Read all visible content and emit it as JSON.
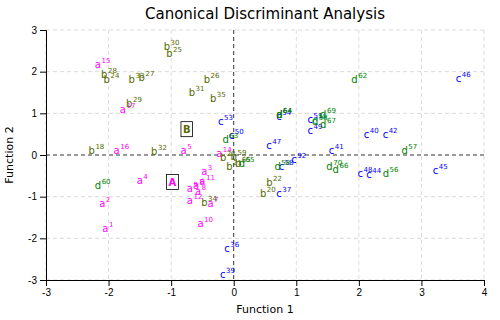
{
  "chart_data": {
    "type": "scatter",
    "title": "Canonical Discriminant Analysis",
    "xlabel": "Function 1",
    "ylabel": "Function 2",
    "xlim": [
      -3,
      4
    ],
    "ylim": [
      -3,
      3
    ],
    "xticks": [
      -3,
      -2,
      -1,
      0,
      1,
      2,
      3,
      4
    ],
    "yticks": [
      -3,
      -2,
      -1,
      0,
      1,
      2,
      3
    ],
    "grid": true,
    "series": [
      {
        "type": "text",
        "x": [
          -2.1,
          -2.15,
          -0.52,
          -1.55,
          -0.85,
          -0.65,
          -0.42,
          -0.62,
          -0.75,
          -0.58,
          -0.55,
          -0.75,
          -0.28,
          -2.22,
          -1.92,
          -1.82,
          -2.32,
          0.42,
          -0.12,
          0.52,
          -0.22,
          -2.08,
          -1.08,
          -0.48,
          -1.52,
          -2.12,
          -1.72,
          -1.12,
          -0.72,
          -1.32,
          -1.68,
          -0.52,
          -0.38,
          -0.05,
          0.02,
          -0.15,
          0.68,
          -0.22,
          2.08,
          1.52,
          2.38,
          2.12,
          3.18,
          3.55,
          0.52,
          1.98,
          1.18,
          -0.08,
          1.18,
          -0.25,
          0.68,
          1.25,
          0.72,
          0.92,
          1.25,
          0.68,
          2.38,
          2.68,
          0.65,
          -2.22,
          1.88,
          -0.18,
          0.68,
          0.08,
          1.58,
          1.38,
          1.38,
          1.48
        ],
        "values": [
          -1.85,
          -1.25,
          -0.48,
          -0.7,
          0.03,
          -0.82,
          -1.25,
          -0.95,
          -0.88,
          -1.72,
          -0.72,
          -1.18,
          -0.05,
          2.1,
          0.02,
          1.0,
          0.02,
          -1.0,
          -0.35,
          -0.75,
          -0.15,
          1.72,
          2.35,
          1.72,
          1.78,
          1.85,
          1.15,
          2.52,
          1.42,
          0.0,
          1.72,
          -1.22,
          1.28,
          -0.12,
          -0.28,
          -2.32,
          -1.0,
          -2.95,
          0.4,
          0.02,
          0.4,
          -0.55,
          -0.45,
          1.75,
          0.15,
          -0.52,
          0.5,
          0.38,
          0.78,
          0.72,
          0.85,
          0.75,
          -0.35,
          -0.18,
          0.72,
          0.88,
          -0.52,
          0.02,
          -0.35,
          -0.82,
          1.72,
          0.28,
          0.88,
          -0.28,
          -0.42,
          0.65,
          0.9,
          -0.35
        ],
        "labels": [
          "a",
          "a",
          "a",
          "a",
          "a",
          "a",
          "a",
          "a",
          "a",
          "a",
          "a",
          "a",
          "a",
          "a",
          "a",
          "a",
          "b",
          "b",
          "b",
          "b",
          "b",
          "b",
          "b",
          "b",
          "b",
          "b",
          "b",
          "b",
          "b",
          "b",
          "b",
          "b",
          "b",
          "b",
          "b",
          "c",
          "c",
          "c",
          "c",
          "c",
          "c",
          "c",
          "c",
          "c",
          "c",
          "c",
          "c",
          "c",
          "c",
          "c",
          "c",
          "c",
          "c",
          "c",
          "d",
          "d",
          "d",
          "d",
          "d",
          "d",
          "d",
          "d",
          "d",
          "d",
          "d",
          "d",
          "d",
          "d"
        ],
        "numbers": [
          "1",
          "2",
          "3",
          "4",
          "5",
          "6",
          "7",
          "8",
          "9",
          "10",
          "11",
          "12",
          "14",
          "15",
          "16",
          "17",
          "18",
          "20",
          "21",
          "22",
          "23",
          "24",
          "25",
          "26",
          "27",
          "28",
          "29",
          "30",
          "31",
          "32",
          "33",
          "34",
          "35",
          "59",
          "65",
          "36",
          "37",
          "39",
          "40",
          "41",
          "42",
          "44",
          "45",
          "46",
          "47",
          "48",
          "49",
          "50",
          "51",
          "53",
          "54",
          "55",
          "58",
          "92",
          "38",
          "54",
          "56",
          "57",
          "58",
          "60",
          "62",
          "63",
          "64",
          "65",
          "66",
          "67",
          "69",
          "70"
        ],
        "colors": [
          "#ff00ff",
          "#ff00ff",
          "#ff00ff",
          "#ff00ff",
          "#ff00ff",
          "#ff00ff",
          "#ff00ff",
          "#ff00ff",
          "#ff00ff",
          "#ff00ff",
          "#ff00ff",
          "#ff00ff",
          "#ff00ff",
          "#ff00ff",
          "#ff00ff",
          "#ff00ff",
          "#556b00",
          "#556b00",
          "#556b00",
          "#556b00",
          "#556b00",
          "#556b00",
          "#556b00",
          "#556b00",
          "#556b00",
          "#556b00",
          "#556b00",
          "#556b00",
          "#556b00",
          "#556b00",
          "#556b00",
          "#556b00",
          "#556b00",
          "#556b00",
          "#556b00",
          "#0000ff",
          "#0000ff",
          "#0000ff",
          "#0000ff",
          "#0000ff",
          "#0000ff",
          "#0000ff",
          "#0000ff",
          "#0000ff",
          "#0000ff",
          "#0000ff",
          "#0000ff",
          "#0000ff",
          "#0000ff",
          "#0000ff",
          "#0000ff",
          "#00aaaa",
          "#0000ff",
          "#0000ff",
          "#008000",
          "#008000",
          "#008000",
          "#008000",
          "#008000",
          "#008000",
          "#008000",
          "#008000",
          "#008000",
          "#008000",
          "#008000",
          "#008000",
          "#008000",
          "#008000"
        ]
      },
      {
        "type": "text",
        "marker": "box",
        "x": [
          -0.98,
          -0.75
        ],
        "values": [
          -0.65,
          0.62
        ],
        "labels": [
          "A",
          "B"
        ],
        "colors": [
          "#ff00ff",
          "#556b00"
        ]
      }
    ]
  }
}
